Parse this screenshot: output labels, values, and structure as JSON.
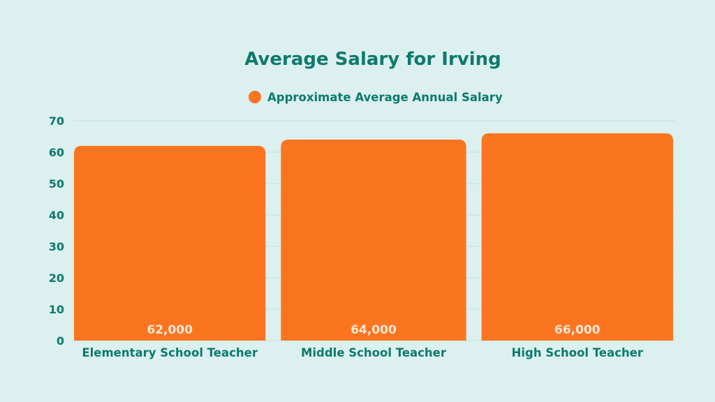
{
  "colors": {
    "background": "#dbf0ef",
    "bar": "#fb7520",
    "text": "#0e7a6c",
    "grid": "#c2e2df",
    "data_label": "#fde7d6"
  },
  "chart_data": {
    "type": "bar",
    "title": "Average Salary for Irving",
    "categories": [
      "Elementary School Teacher",
      "Middle School Teacher",
      "High School Teacher"
    ],
    "series": [
      {
        "name": "Approximate Average Annual Salary",
        "values": [
          62,
          64,
          66
        ],
        "data_labels": [
          "62,000",
          "64,000",
          "66,000"
        ]
      }
    ],
    "ylim": [
      0,
      70
    ],
    "yticks": [
      0,
      10,
      20,
      30,
      40,
      50,
      60,
      70
    ],
    "grid": true,
    "legend": "top-center"
  }
}
